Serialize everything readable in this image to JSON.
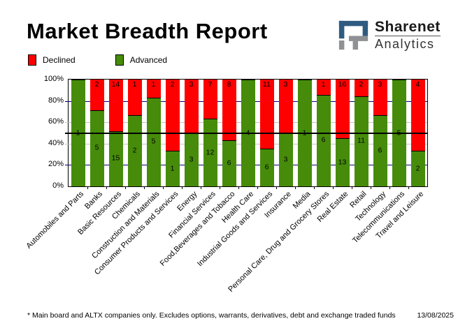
{
  "header": {
    "title": "Market Breadth Report",
    "logo": {
      "name": "Sharenet",
      "sub": "Analytics",
      "icon_blue": "#2F5B80",
      "icon_gray": "#8F9194"
    }
  },
  "legend": {
    "items": [
      {
        "label": "Declined",
        "color": "#FF0000"
      },
      {
        "label": "Advanced",
        "color": "#468C0A"
      }
    ]
  },
  "footer": {
    "note": "* Main board and ALTX companies only. Excludes options, warrants, derivatives, debt and exchange traded funds",
    "date": "13/08/2025"
  },
  "chart_data": {
    "type": "bar",
    "subtype": "stacked-100-percent",
    "title": "Market Breadth Report",
    "xlabel": "",
    "ylabel": "",
    "ylim": [
      0,
      100
    ],
    "legend_position": "top-left",
    "categories": [
      "Automobiles and Parts",
      "Banks",
      "Basic Resources",
      "Chemicals",
      "Construction and Materials",
      "Consumer Products and Services",
      "Energy",
      "Financial Services",
      "Food,Beverages and Tobacco",
      "Health Care",
      "Industrial Goods and Services",
      "Insurance",
      "Media",
      "Personal Care, Drug and Grocery Stores",
      "Real Estate",
      "Retail",
      "Technology",
      "Telecommunications",
      "Travel and Leisure"
    ],
    "series": [
      {
        "name": "Declined",
        "color": "#FF0000",
        "values": [
          0,
          2,
          14,
          1,
          1,
          2,
          3,
          7,
          8,
          0,
          11,
          3,
          0,
          1,
          16,
          2,
          3,
          0,
          4
        ]
      },
      {
        "name": "Advanced",
        "color": "#468C0A",
        "values": [
          1,
          5,
          15,
          2,
          5,
          1,
          3,
          12,
          6,
          4,
          6,
          3,
          1,
          6,
          13,
          11,
          6,
          5,
          2
        ]
      }
    ],
    "y_ticks": [
      {
        "label": "0%",
        "pct": 0
      },
      {
        "label": "20%",
        "pct": 20
      },
      {
        "label": "40%",
        "pct": 40
      },
      {
        "label": "60%",
        "pct": 60
      },
      {
        "label": "80%",
        "pct": 80
      },
      {
        "label": "100%",
        "pct": 100
      }
    ],
    "gridlines": [
      {
        "pct": 20,
        "color": "#000080"
      },
      {
        "pct": 40,
        "color": "#C4C4C4"
      },
      {
        "pct": 60,
        "color": "#C4C4C4"
      },
      {
        "pct": 80,
        "color": "#000080"
      }
    ],
    "midline_pct": 50,
    "value_label_color": "#000000"
  }
}
